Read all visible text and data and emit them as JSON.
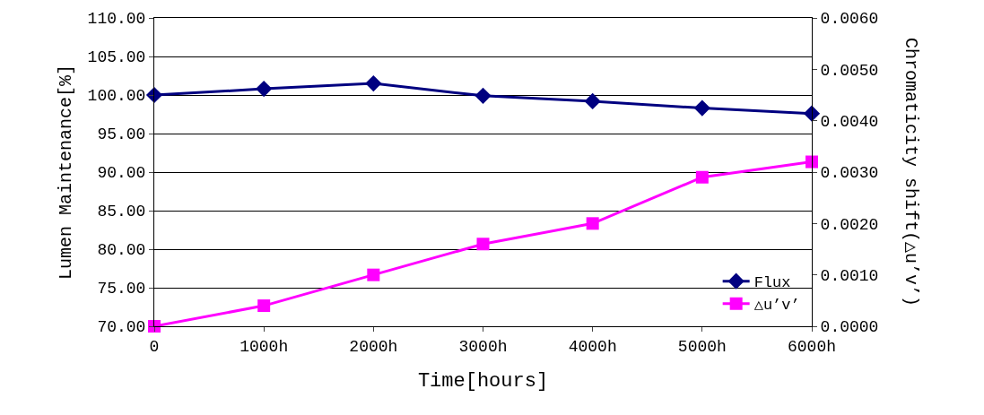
{
  "chart_data": {
    "type": "line",
    "xlabel": "Time[hours]",
    "ylabel": "Lumen Maintenance[%]",
    "y2label": "Chromaticity shift(△u’v’)",
    "categories": [
      "0",
      "1000h",
      "2000h",
      "3000h",
      "4000h",
      "5000h",
      "6000h"
    ],
    "series": [
      {
        "name": "Flux",
        "color": "#000080",
        "marker": "diamond",
        "values": [
          100.0,
          100.8,
          101.5,
          99.9,
          99.2,
          98.3,
          97.6
        ]
      },
      {
        "name": "△u’v’",
        "color": "#ff00ff",
        "marker": "square",
        "axis": "y2",
        "values": [
          0.0,
          0.0004,
          0.001,
          0.0016,
          0.002,
          0.0029,
          0.0032
        ]
      }
    ],
    "ylim": [
      70,
      110
    ],
    "yticks": [
      {
        "value": 70,
        "label": "70.00"
      },
      {
        "value": 75,
        "label": "75.00"
      },
      {
        "value": 80,
        "label": "80.00"
      },
      {
        "value": 85,
        "label": "85.00"
      },
      {
        "value": 90,
        "label": "90.00"
      },
      {
        "value": 95,
        "label": "95.00"
      },
      {
        "value": 100,
        "label": "100.00"
      },
      {
        "value": 105,
        "label": "105.00"
      },
      {
        "value": 110,
        "label": "110.00"
      }
    ],
    "y2lim": [
      0,
      0.006
    ],
    "y2ticks": [
      {
        "value": 0,
        "label": "0.0000"
      },
      {
        "value": 0.001,
        "label": "0.0010"
      },
      {
        "value": 0.002,
        "label": "0.0020"
      },
      {
        "value": 0.003,
        "label": "0.0030"
      },
      {
        "value": 0.004,
        "label": "0.0040"
      },
      {
        "value": 0.005,
        "label": "0.0050"
      },
      {
        "value": 0.006,
        "label": "0.0060"
      }
    ],
    "grid": "y",
    "legend": "bottom right",
    "line_style": "solid"
  }
}
